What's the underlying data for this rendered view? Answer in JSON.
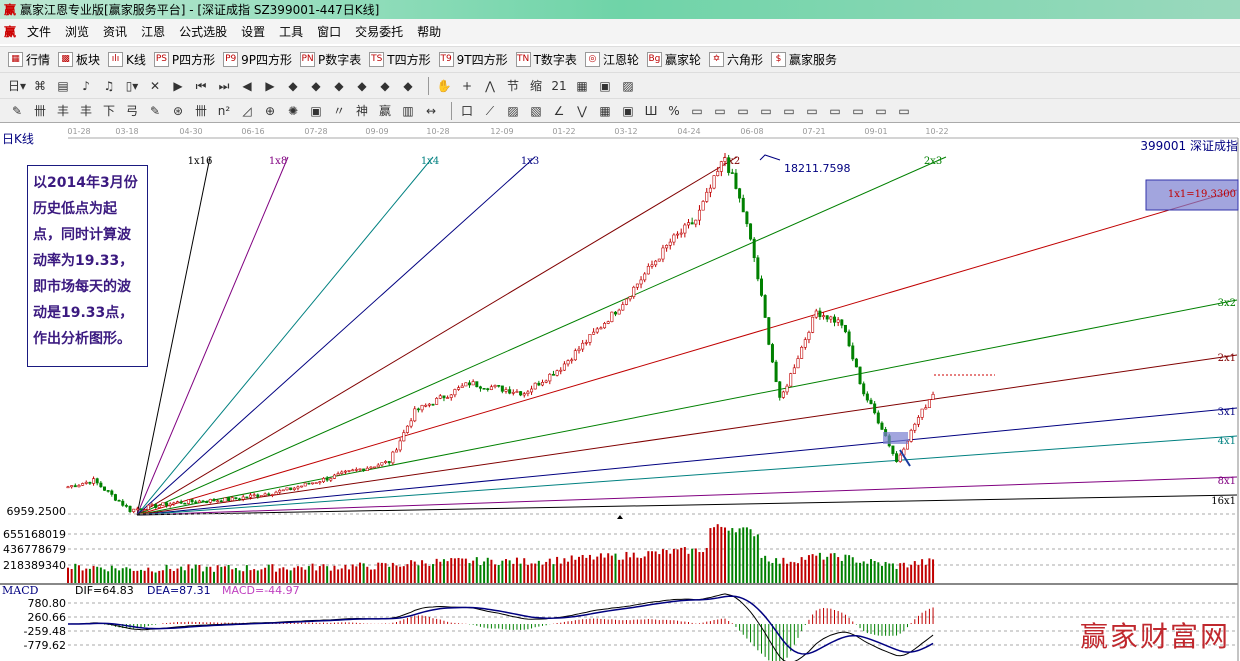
{
  "window": {
    "logo": "赢",
    "title": "赢家江恩专业版[赢家服务平台] - [深证成指  SZ399001-447日K线]"
  },
  "menu": {
    "logo": "赢",
    "items": [
      "文件",
      "浏览",
      "资讯",
      "江恩",
      "公式选股",
      "设置",
      "工具",
      "窗口",
      "交易委托",
      "帮助"
    ]
  },
  "toolbar1": [
    {
      "icon": "▦",
      "label": "行情",
      "name": "quotes"
    },
    {
      "icon": "▩",
      "label": "板块",
      "name": "sectors"
    },
    {
      "icon": "ılı",
      "label": "K线",
      "name": "kline"
    },
    {
      "icon": "PS",
      "label": "P四方形",
      "name": "p-square"
    },
    {
      "icon": "P9",
      "label": "9P四方形",
      "name": "9p-square"
    },
    {
      "icon": "PN",
      "label": "P数字表",
      "name": "p-number-table"
    },
    {
      "icon": "TS",
      "label": "T四方形",
      "name": "t-square"
    },
    {
      "icon": "T9",
      "label": "9T四方形",
      "name": "9t-square"
    },
    {
      "icon": "TN",
      "label": "T数字表",
      "name": "t-number-table"
    },
    {
      "icon": "◎",
      "label": "江恩轮",
      "name": "gann-wheel"
    },
    {
      "icon": "Bg",
      "label": "赢家轮",
      "name": "winner-wheel"
    },
    {
      "icon": "✡",
      "label": "六角形",
      "name": "hexagon"
    },
    {
      "icon": "$",
      "label": "赢家服务",
      "name": "winner-service"
    }
  ],
  "toolbar2": [
    "日▾",
    "⌘",
    "▤",
    "♪",
    "♫",
    "▯▾",
    "✕",
    "▶",
    "⏮",
    "⏭",
    "◀",
    "▶",
    "◆",
    "◆",
    "◆",
    "◆",
    "◆",
    "◆",
    "✋",
    "+",
    "⋀",
    "节",
    "缩",
    "21",
    "▦",
    "▣",
    "▨"
  ],
  "toolbar3": [
    "✎",
    "卌",
    "丰",
    "丰",
    "下",
    "弓",
    "✎",
    "⊛",
    "卌",
    "n²",
    "◿",
    "⊕",
    "✺",
    "▣",
    "〃",
    "神",
    "赢",
    "▥",
    "↔",
    "口",
    "⟋",
    "▨",
    "▧",
    "∠",
    "⋁",
    "▦",
    "▣",
    "Ш",
    "%",
    "▭",
    "▭",
    "▭",
    "▭",
    "▭",
    "▭",
    "▭",
    "▭",
    "▭",
    "▭"
  ],
  "chart": {
    "period_label": "日K线",
    "dates": [
      "01-28",
      "03-18",
      "04-30",
      "06-16",
      "07-28",
      "09-09",
      "10-28",
      "12-09",
      "01-22",
      "03-12",
      "04-24",
      "06-08",
      "07-21",
      "09-01",
      "10-22"
    ],
    "code_name": "399001 深证成指",
    "low_label": "6959.2500",
    "high_label": "18211.7598",
    "fan_labels": [
      "1x16",
      "1x8",
      "1x4",
      "1x3",
      "1x2",
      "2x3",
      "1x1=19.3300",
      "3x2",
      "2x1",
      "3x1",
      "4x1",
      "8x1",
      "16x1"
    ],
    "fan_colors": [
      "#000000",
      "#800080",
      "#008080",
      "#000080",
      "#800000",
      "#008000",
      "#c00000",
      "#008000",
      "#800000",
      "#000080",
      "#008080",
      "#800080",
      "#000000"
    ],
    "note": "以2014年3月份历史低点为起点，同时计算波动率为19.33，即市场每天的波动是19.33点，作出分析图形。",
    "price_path": [
      [
        0,
        7700
      ],
      [
        7,
        7900
      ],
      [
        17,
        6960
      ],
      [
        30,
        7200
      ],
      [
        45,
        7300
      ],
      [
        60,
        7600
      ],
      [
        78,
        8200
      ],
      [
        88,
        8500
      ],
      [
        95,
        10100
      ],
      [
        110,
        11000
      ],
      [
        125,
        10700
      ],
      [
        135,
        11500
      ],
      [
        150,
        13300
      ],
      [
        165,
        15500
      ],
      [
        172,
        16200
      ],
      [
        180,
        18211
      ],
      [
        185,
        16500
      ],
      [
        188,
        15000
      ],
      [
        195,
        10400
      ],
      [
        205,
        13300
      ],
      [
        212,
        12900
      ],
      [
        218,
        10700
      ],
      [
        223,
        9600
      ],
      [
        227,
        8500
      ],
      [
        232,
        9700
      ],
      [
        237,
        10700
      ]
    ]
  },
  "volume": {
    "labels": [
      "655168019",
      "436778679",
      "218389340"
    ]
  },
  "macd": {
    "title": "MACD",
    "dif": "DIF=64.83",
    "dea": "DEA=87.31",
    "macd": "MACD=-44.97",
    "labels": [
      "780.80",
      "260.66",
      "-259.48",
      "-779.62"
    ]
  },
  "watermark": "赢家财富网"
}
